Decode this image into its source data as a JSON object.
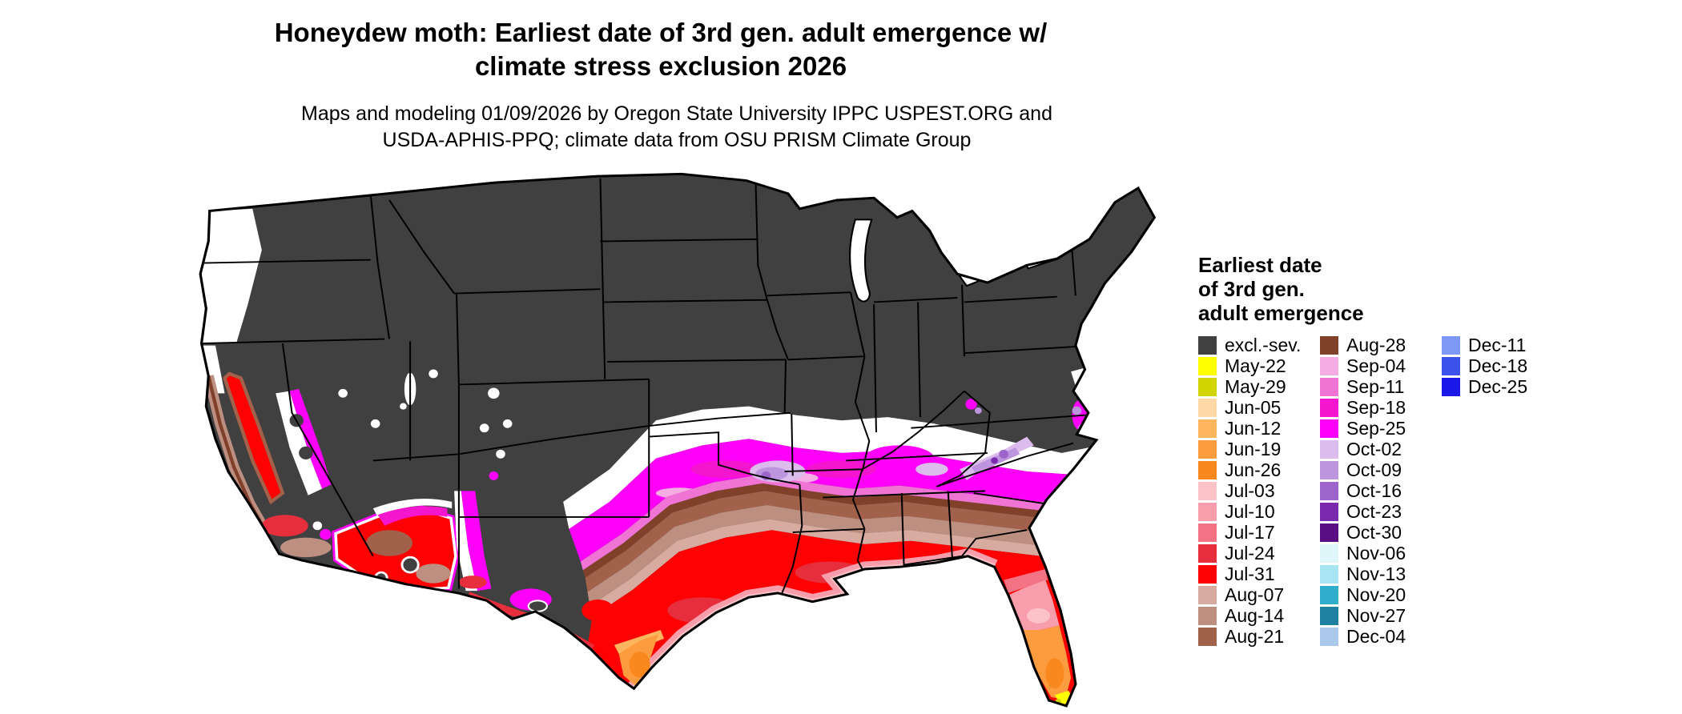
{
  "title": {
    "line1": "Honeydew moth: Earliest date of 3rd gen. adult emergence w/",
    "line2": "climate stress exclusion 2026"
  },
  "subtitle": {
    "line1": "Maps and modeling 01/09/2026 by Oregon State University IPPC USPEST.ORG and",
    "line2": "USDA-APHIS-PPQ; climate data from OSU PRISM Climate Group"
  },
  "map": {
    "region": "Continental United States"
  },
  "legend": {
    "title_lines": [
      "Earliest date",
      "of 3rd gen.",
      "adult emergence"
    ],
    "columns": [
      [
        "excl.-sev.",
        "May-22",
        "May-29",
        "Jun-05",
        "Jun-12",
        "Jun-19",
        "Jun-26",
        "Jul-03",
        "Jul-10",
        "Jul-17",
        "Jul-24",
        "Jul-31",
        "Aug-07",
        "Aug-14",
        "Aug-21"
      ],
      [
        "Aug-28",
        "Sep-04",
        "Sep-11",
        "Sep-18",
        "Sep-25",
        "Oct-02",
        "Oct-09",
        "Oct-16",
        "Oct-23",
        "Oct-30",
        "Nov-06",
        "Nov-13",
        "Nov-20",
        "Nov-27",
        "Dec-04"
      ],
      [
        "Dec-11",
        "Dec-18",
        "Dec-25"
      ]
    ]
  },
  "colors": {
    "excl.-sev.": "#404040",
    "May-22": "#ffff00",
    "May-29": "#d0d400",
    "Jun-05": "#fed9a6",
    "Jun-12": "#feb65e",
    "Jun-19": "#fd9c3f",
    "Jun-26": "#f9881f",
    "Jul-03": "#fbc3c8",
    "Jul-10": "#f79dab",
    "Jul-17": "#f37283",
    "Jul-24": "#e62e3c",
    "Jul-31": "#fd0103",
    "Aug-07": "#d8aba1",
    "Aug-14": "#bd8f80",
    "Aug-21": "#a2614a",
    "Aug-28": "#81402a",
    "Sep-04": "#f4ace2",
    "Sep-11": "#ef74d4",
    "Sep-18": "#f316ce",
    "Sep-25": "#fd01fb",
    "Oct-02": "#dcbcec",
    "Oct-09": "#bd94de",
    "Oct-16": "#9d64cb",
    "Oct-23": "#7b2aad",
    "Oct-30": "#590e83",
    "Nov-06": "#def5f9",
    "Nov-13": "#a7e5f2",
    "Nov-20": "#32aecd",
    "Nov-27": "#1e81a2",
    "Dec-04": "#abc9ea",
    "Dec-11": "#7d99f5",
    "Dec-18": "#3d52eb",
    "Dec-25": "#1b19ea",
    "no-data": "#ffffff"
  }
}
